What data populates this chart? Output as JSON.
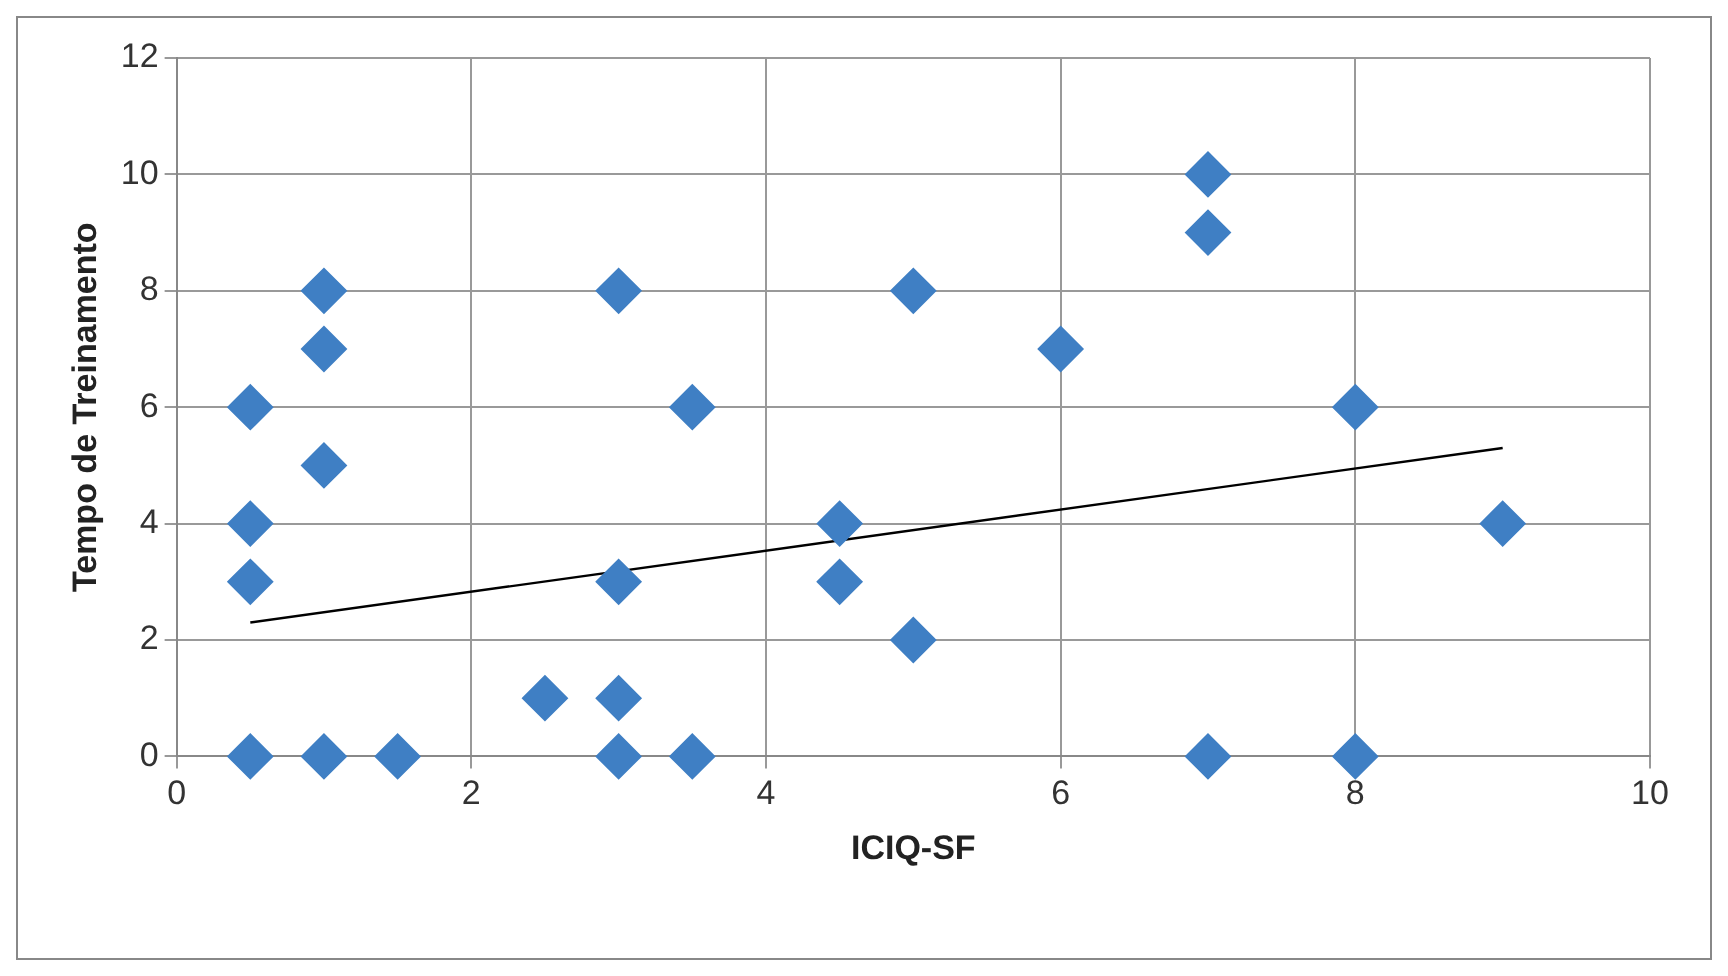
{
  "chart_data": {
    "type": "scatter",
    "xlabel": "ICIQ-SF",
    "ylabel": "Tempo de Treinamento",
    "xlim": [
      0,
      10
    ],
    "xticks": [
      0,
      2,
      4,
      6,
      8,
      10
    ],
    "ylim": [
      0,
      12
    ],
    "yticks": [
      0,
      2,
      4,
      6,
      8,
      10,
      12
    ],
    "grid": true,
    "legend": false,
    "marker": "diamond",
    "series": [
      {
        "type": "scatter",
        "color": "#3f7fc4",
        "x": [
          0.5,
          0.5,
          0.5,
          0.5,
          1,
          1,
          1,
          1,
          1.5,
          2.5,
          3,
          3,
          3,
          3,
          3.5,
          3.5,
          4.5,
          4.5,
          5,
          5,
          6,
          7,
          7,
          7,
          8,
          8,
          9
        ],
        "values": [
          0,
          3,
          4,
          6,
          0,
          5,
          7,
          8,
          0,
          1,
          0,
          1,
          3,
          8,
          0,
          6,
          3,
          4,
          2,
          8,
          7,
          0,
          9,
          10,
          0,
          6,
          4
        ]
      },
      {
        "type": "line",
        "color": "#000000",
        "marker": "none",
        "line_style": "solid",
        "x": [
          0.5,
          9
        ],
        "values": [
          2.3,
          5.3
        ]
      }
    ]
  }
}
